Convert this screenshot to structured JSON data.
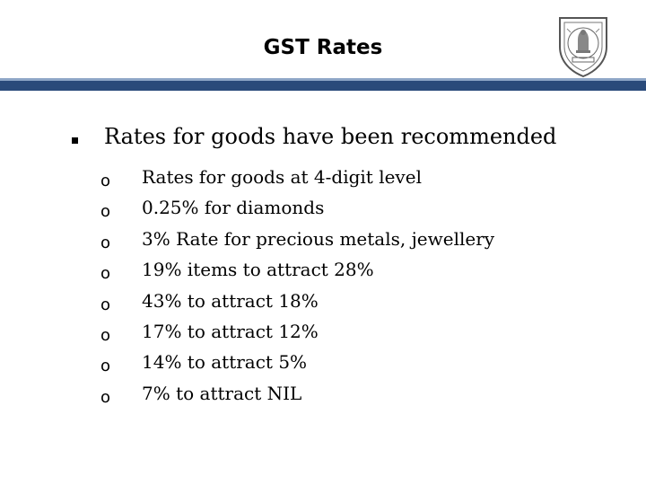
{
  "title": "GST Rates",
  "main_bullet": "Rates for goods have been recommended",
  "sub_marker": "o",
  "sub_bullets": [
    "Rates for goods at 4-digit level",
    "0.25% for diamonds",
    "3% Rate for precious metals, jewellery",
    "19% items to attract 28%",
    "43% to attract 18%",
    "17% to attract 12%",
    "14% to attract 5%",
    "7% to attract NIL"
  ],
  "logo": {
    "icon": "emblem-shield-logo"
  },
  "colors": {
    "band": "#2a4a7a",
    "band_light": "#8ea6c6",
    "text": "#000000"
  }
}
